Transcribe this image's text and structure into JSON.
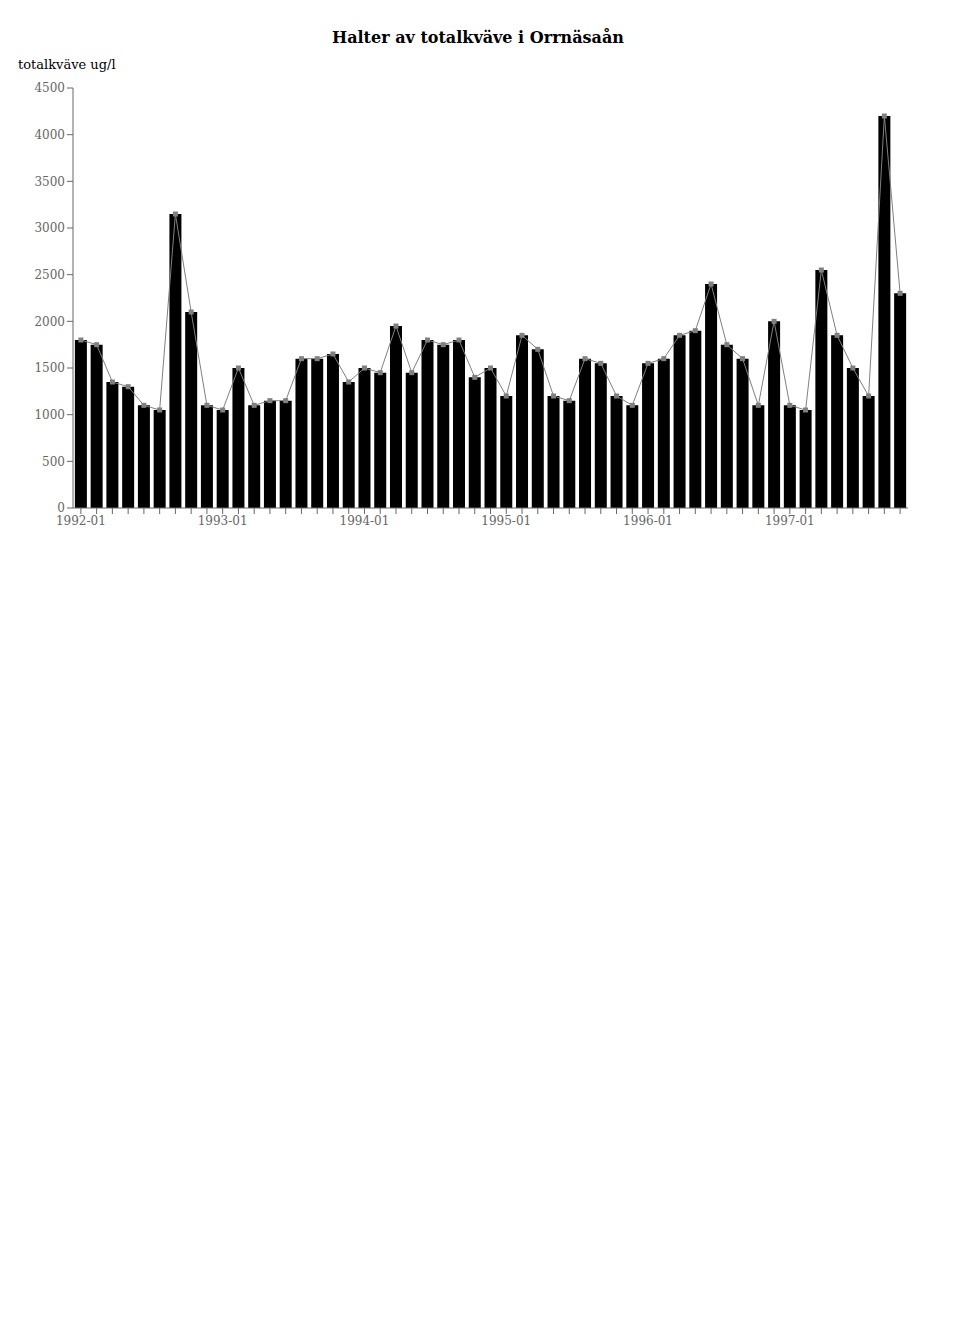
{
  "chart_data": {
    "type": "bar",
    "title": "Halter av totalkväve i Orrnäsaån",
    "ylabel": "totalkväve ug/l",
    "categories": [
      "1992-01",
      null,
      null,
      null,
      null,
      null,
      null,
      null,
      null,
      "1993-01",
      null,
      null,
      null,
      null,
      null,
      null,
      null,
      null,
      "1994-01",
      null,
      null,
      null,
      null,
      null,
      null,
      null,
      null,
      "1995-01",
      null,
      null,
      null,
      null,
      null,
      null,
      null,
      null,
      "1996-01",
      null,
      null,
      null,
      null,
      null,
      null,
      null,
      null,
      "1997-01",
      null,
      null,
      null,
      null,
      null,
      null,
      null
    ],
    "series": [
      {
        "type": "bar",
        "color": "#000000",
        "values": [
          1800,
          1750,
          1350,
          1300,
          1100,
          1050,
          3150,
          2100,
          1100,
          1050,
          1500,
          1100,
          1150,
          1150,
          1600,
          1600,
          1650,
          1350,
          1500,
          1450,
          1950,
          1450,
          1800,
          1750,
          1800,
          1400,
          1500,
          1200,
          1850,
          1700,
          1200,
          1150,
          1600,
          1550,
          1200,
          1100,
          1550,
          1600,
          1850,
          1900,
          2400,
          1750,
          1600,
          1100,
          2000,
          1100,
          1050,
          2550,
          1850,
          1500,
          1200,
          4200,
          2300
        ]
      },
      {
        "type": "line",
        "color": "#808080",
        "marker": "square",
        "values": [
          1800,
          1750,
          1350,
          1300,
          1100,
          1050,
          3150,
          2100,
          1100,
          1050,
          1500,
          1100,
          1150,
          1150,
          1600,
          1600,
          1650,
          1350,
          1500,
          1450,
          1950,
          1450,
          1800,
          1750,
          1800,
          1400,
          1500,
          1200,
          1850,
          1700,
          1200,
          1150,
          1600,
          1550,
          1200,
          1100,
          1550,
          1600,
          1850,
          1900,
          2400,
          1750,
          1600,
          1100,
          2000,
          1100,
          1050,
          2550,
          1850,
          1500,
          1200,
          4200,
          2300
        ]
      }
    ],
    "ylim": [
      0,
      4500
    ],
    "yticks": [
      0,
      500,
      1000,
      1500,
      2000,
      2500,
      3000,
      3500,
      4000,
      4500
    ],
    "grid": false
  }
}
